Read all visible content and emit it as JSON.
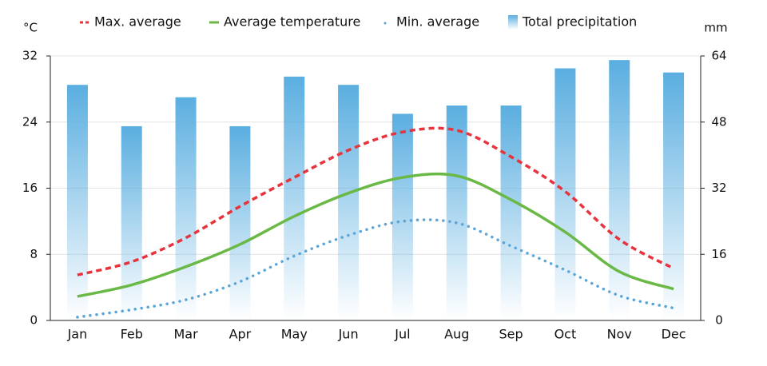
{
  "chart_data": {
    "type": "climate",
    "y_unit": "°C",
    "y2_unit": "mm",
    "categories": [
      "Jan",
      "Feb",
      "Mar",
      "Apr",
      "May",
      "Jun",
      "Jul",
      "Aug",
      "Sep",
      "Oct",
      "Nov",
      "Dec"
    ],
    "ylim": [
      0,
      32
    ],
    "yticks": [
      0,
      8,
      16,
      24,
      32
    ],
    "y2lim": [
      0,
      64
    ],
    "y2ticks": [
      0,
      16,
      32,
      48,
      64
    ],
    "grid": true,
    "series": [
      {
        "name": "Max. average",
        "type": "line",
        "style": "dashed",
        "color": "#e8323c",
        "values": [
          5.5,
          7.1,
          10,
          13.8,
          17.3,
          20.6,
          22.8,
          23,
          19.8,
          15.6,
          9.8,
          6.3
        ]
      },
      {
        "name": "Average temperature",
        "type": "line",
        "style": "solid",
        "color": "#6ab845",
        "values": [
          2.9,
          4.3,
          6.5,
          9.2,
          12.6,
          15.4,
          17.3,
          17.5,
          14.6,
          10.7,
          5.9,
          3.8
        ]
      },
      {
        "name": "Min. average",
        "type": "line",
        "style": "dotted",
        "color": "#5aa5d8",
        "values": [
          0.4,
          1.3,
          2.5,
          4.7,
          7.8,
          10.3,
          12,
          11.8,
          9,
          6.1,
          3,
          1.5
        ]
      },
      {
        "name": "Total precipitation",
        "type": "bar",
        "axis": "y2",
        "color": "#5aaee0",
        "values": [
          57,
          47,
          54,
          47,
          59,
          57,
          50,
          52,
          52,
          61,
          63,
          60
        ]
      }
    ]
  }
}
